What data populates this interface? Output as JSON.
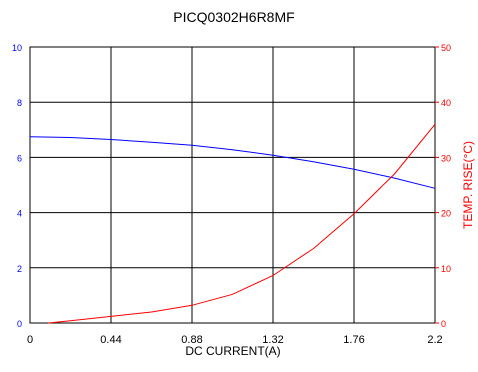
{
  "chart_data": {
    "type": "line",
    "title": "PICQ0302H6R8MF",
    "xlabel": "DC CURRENT(A)",
    "ylabel_left": "",
    "ylabel_right": "TEMP. RISE(°C)",
    "xlim": [
      0,
      2.2
    ],
    "ylim_left": [
      0,
      10
    ],
    "ylim_right": [
      0,
      50
    ],
    "x_ticks": [
      "0",
      "0.44",
      "0.88",
      "1.32",
      "1.76",
      "2.2"
    ],
    "y_left_ticks": [
      "0",
      "2",
      "4",
      "6",
      "8",
      "10"
    ],
    "y_right_ticks": [
      "0",
      "10",
      "20",
      "30",
      "40",
      "50"
    ],
    "grid": true,
    "series": [
      {
        "axis": "left",
        "color": "#0000ff",
        "x": [
          0,
          0.22,
          0.44,
          0.66,
          0.88,
          1.1,
          1.32,
          1.54,
          1.76,
          1.98,
          2.2
        ],
        "y": [
          6.75,
          6.72,
          6.65,
          6.55,
          6.44,
          6.28,
          6.08,
          5.84,
          5.57,
          5.25,
          4.88
        ]
      },
      {
        "axis": "right",
        "color": "#ff0000",
        "x": [
          0.1,
          0.22,
          0.44,
          0.66,
          0.88,
          1.1,
          1.32,
          1.54,
          1.76,
          1.98,
          2.2
        ],
        "y": [
          0,
          0.4,
          1.2,
          2.0,
          3.2,
          5.2,
          8.6,
          13.5,
          19.8,
          27.0,
          36.0
        ]
      }
    ]
  }
}
